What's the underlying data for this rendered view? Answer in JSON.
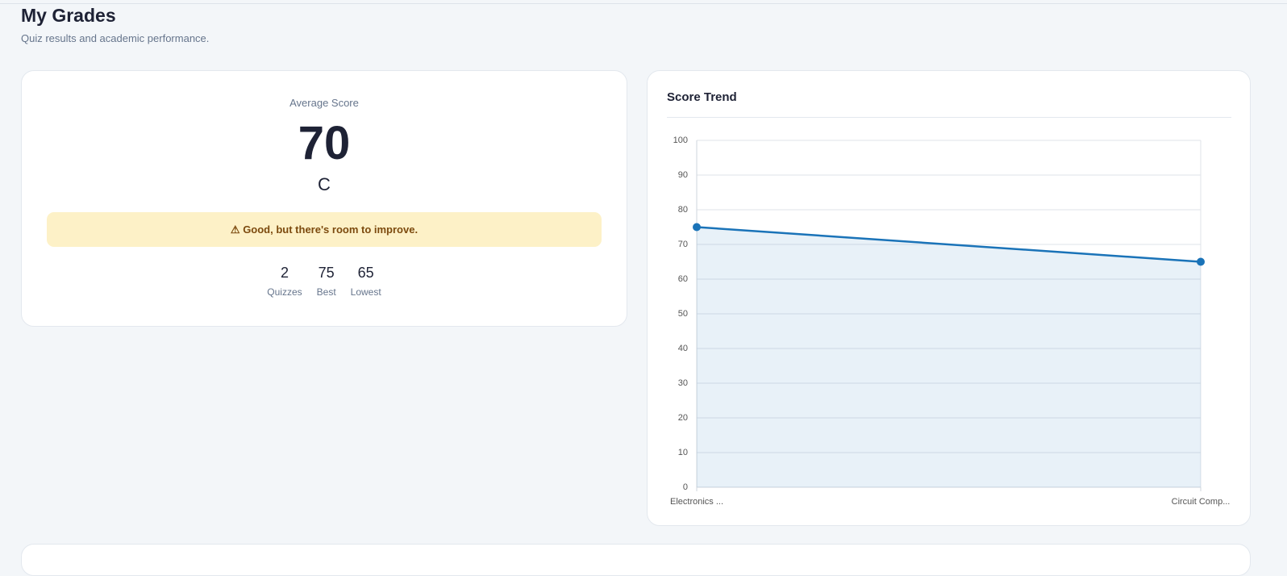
{
  "header": {
    "title": "My Grades",
    "subtitle": "Quiz results and academic performance."
  },
  "summary": {
    "label": "Average Score",
    "average": 70,
    "grade": "C",
    "notice": "⚠ Good, but there's room to improve.",
    "stats": [
      {
        "value": 2,
        "label": "Quizzes"
      },
      {
        "value": 75,
        "label": "Best"
      },
      {
        "value": 65,
        "label": "Lowest"
      }
    ]
  },
  "chart_data": {
    "type": "line",
    "title": "Score Trend",
    "categories": [
      "Electronics ...",
      "Circuit Comp..."
    ],
    "values": [
      75,
      65
    ],
    "color": "#1a73b8",
    "area": true,
    "ylim": [
      0,
      100
    ],
    "yticks": [
      0,
      10,
      20,
      30,
      40,
      50,
      60,
      70,
      80,
      90,
      100
    ],
    "grid": true
  }
}
